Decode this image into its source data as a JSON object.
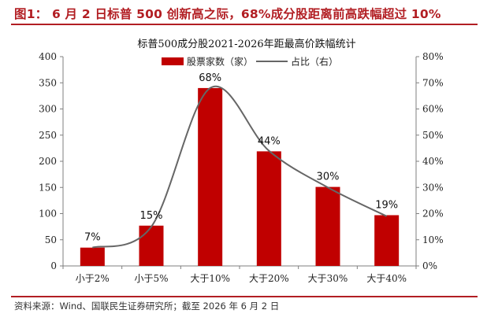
{
  "header": {
    "figure_title": "图1：  6 月 2 日标普 500 创新高之际，68%成分股距离前高跌幅超过 10%"
  },
  "footer": {
    "source": "资料来源：Wind、国联民生证券研究所；截至 2026 年 6 月 2 日"
  },
  "colors": {
    "accent": "#b21e23",
    "bar": "#c00000",
    "line": "#666666"
  },
  "chart_data": {
    "type": "bar",
    "title": "标普500成分股2021-2026年距最高价跌幅统计",
    "categories": [
      "小于2%",
      "小于5%",
      "大于10%",
      "大于20%",
      "大于30%",
      "大于40%"
    ],
    "series": [
      {
        "name": "股票家数（家）",
        "type": "bar",
        "axis": "left",
        "values": [
          35,
          77,
          340,
          219,
          151,
          97
        ]
      },
      {
        "name": "占比（右）",
        "type": "line",
        "axis": "right",
        "values": [
          0.07,
          0.15,
          0.68,
          0.44,
          0.3,
          0.19
        ]
      }
    ],
    "data_labels": [
      "7%",
      "15%",
      "68%",
      "44%",
      "30%",
      "19%"
    ],
    "left_axis": {
      "ylim": [
        0,
        400
      ],
      "ticks": [
        "0",
        "50",
        "100",
        "150",
        "200",
        "250",
        "300",
        "350",
        "400"
      ]
    },
    "right_axis": {
      "ylim": [
        0,
        0.8
      ],
      "ticks": [
        "0%",
        "10%",
        "20%",
        "30%",
        "40%",
        "50%",
        "60%",
        "70%",
        "80%"
      ]
    },
    "grid": false,
    "legend_position": "top"
  }
}
